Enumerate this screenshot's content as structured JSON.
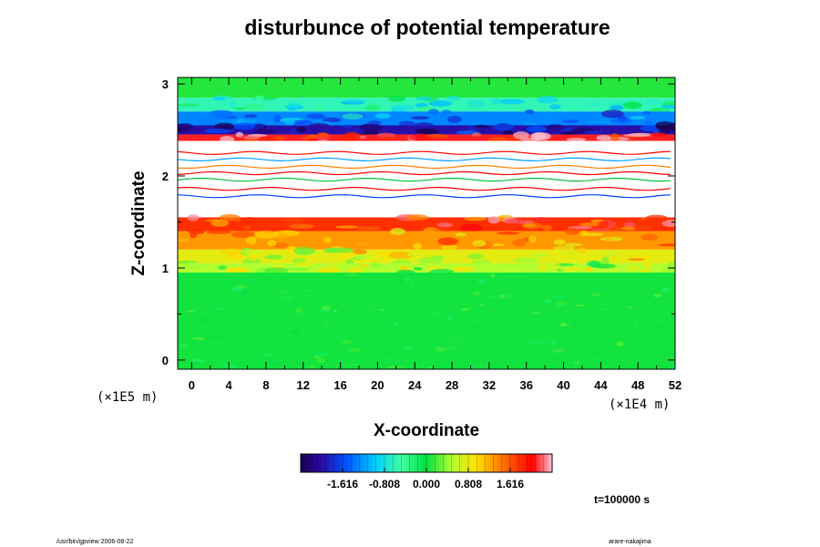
{
  "chart_data": {
    "type": "heatmap",
    "title": "disturbunce of potential temperature",
    "xlabel": "X-coordinate",
    "ylabel": "Z-coordinate",
    "x_unit": "(×1E4 m)",
    "y_unit": "(×1E5 m)",
    "xlim": [
      -1.5,
      52
    ],
    "ylim": [
      -0.1,
      3.07
    ],
    "x_ticks": [
      "0",
      "4",
      "8",
      "12",
      "16",
      "20",
      "24",
      "28",
      "32",
      "36",
      "40",
      "44",
      "48",
      "52"
    ],
    "y_ticks": [
      "0",
      "1",
      "2",
      "3"
    ],
    "x_tick_values": [
      0,
      4,
      8,
      12,
      16,
      20,
      24,
      28,
      32,
      36,
      40,
      44,
      48,
      52
    ],
    "y_tick_values": [
      0,
      1,
      2,
      3
    ],
    "colorbar": {
      "min": -2.424,
      "max": 2.424,
      "ticks": [
        "-1.616",
        "-0.808",
        "0.000",
        "0.808",
        "1.616"
      ],
      "tick_values": [
        -1.616,
        -0.808,
        0.0,
        0.808,
        1.616
      ]
    },
    "bands": [
      {
        "z": [
          2.85,
          3.07
        ],
        "value": 0.1
      },
      {
        "z": [
          2.7,
          2.85
        ],
        "value": -0.6
      },
      {
        "z": [
          2.55,
          2.7
        ],
        "value": -1.3
      },
      {
        "z": [
          2.45,
          2.55
        ],
        "value": -2.0
      },
      {
        "z": [
          2.38,
          2.45
        ],
        "value": 2.1
      },
      {
        "z": [
          1.55,
          2.38
        ],
        "value": null
      },
      {
        "z": [
          1.4,
          1.55
        ],
        "value": 1.8
      },
      {
        "z": [
          1.2,
          1.4
        ],
        "value": 1.3
      },
      {
        "z": [
          1.05,
          1.2
        ],
        "value": 0.8
      },
      {
        "z": [
          0.95,
          1.05
        ],
        "value": 0.5
      },
      {
        "z": [
          -0.1,
          0.95
        ],
        "value": 0.05
      }
    ]
  },
  "time_label": "t=100000 s",
  "footer_left": "/usr/bin/gpview 2006-08-22",
  "footer_right": "arare-nakajima"
}
